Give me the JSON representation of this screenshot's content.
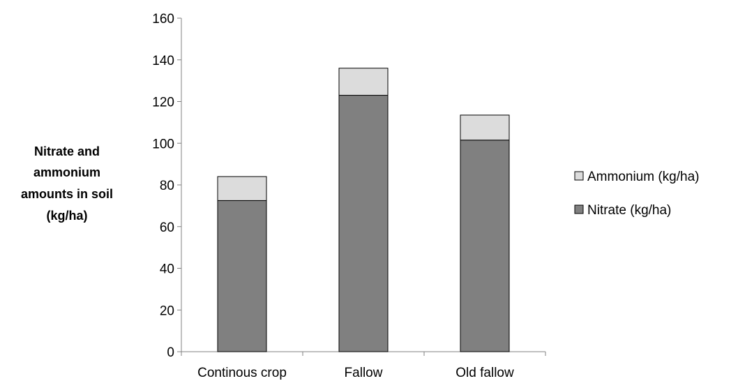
{
  "chart_data": {
    "type": "bar",
    "stacked": true,
    "title": "",
    "ylabel_lines": [
      "Nitrate and",
      "ammonium",
      "amounts in soil",
      "(kg/ha)"
    ],
    "xlabel": "",
    "categories": [
      "Continous crop",
      "Fallow",
      "Old fallow"
    ],
    "series": [
      {
        "name": "Nitrate (kg/ha)",
        "values": [
          72.5,
          123,
          101.5
        ],
        "color": "#808080"
      },
      {
        "name": "Ammonium (kg/ha)",
        "values": [
          11.5,
          13,
          12
        ],
        "color": "#dcdcdc"
      }
    ],
    "ylim": [
      0,
      160
    ],
    "yticks": [
      0,
      20,
      40,
      60,
      80,
      100,
      120,
      140,
      160
    ],
    "grid": false,
    "legend_position": "right",
    "legend_order": [
      "Ammonium (kg/ha)",
      "Nitrate (kg/ha)"
    ]
  }
}
